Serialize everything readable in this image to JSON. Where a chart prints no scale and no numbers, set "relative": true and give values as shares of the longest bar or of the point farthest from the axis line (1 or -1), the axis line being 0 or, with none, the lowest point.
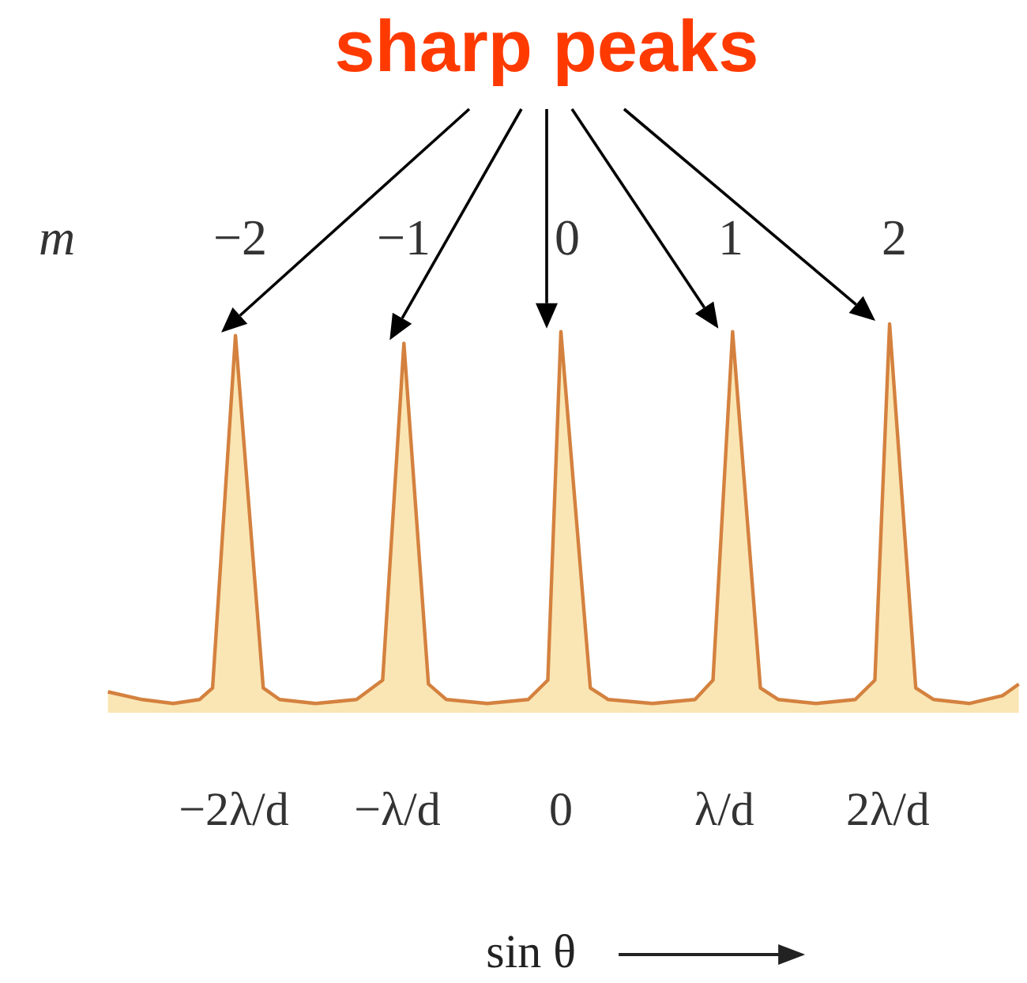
{
  "chart_data": {
    "type": "area",
    "relative": true,
    "annotations": [
      "sharp peaks"
    ],
    "xlabel": "sin θ",
    "x2label": "m",
    "xlim": [
      -2.77,
      2.8
    ],
    "xticks": [
      {
        "value": -2,
        "label": "−2λ/d"
      },
      {
        "value": -1,
        "label": "−λ/d"
      },
      0,
      {
        "value": 1,
        "label": "λ/d"
      },
      {
        "value": 2,
        "label": "2λ/d"
      }
    ],
    "x2lim": [
      -2.77,
      2.8
    ],
    "x2ticks": [
      {
        "value": -2,
        "label": "−2"
      },
      {
        "value": -1,
        "label": "−1"
      },
      0,
      1,
      2
    ],
    "x": [
      -2.77,
      -2.56,
      -2.37,
      -2.21,
      -2.13,
      -1.99,
      -1.82,
      -1.72,
      -1.5,
      -1.25,
      -1.09,
      -0.96,
      -0.81,
      -0.7,
      -0.45,
      -0.2,
      -0.08,
      0,
      0.18,
      0.29,
      0.56,
      0.82,
      0.93,
      1.05,
      1.22,
      1.33,
      1.56,
      1.8,
      1.92,
      2.01,
      2.17,
      2.28,
      2.5,
      2.7,
      2.8
    ],
    "series": [
      {
        "color": "#d4813f",
        "values": [
          0.05,
          0.03,
          0.02,
          0.03,
          0.06,
          0.97,
          0.06,
          0.03,
          0.02,
          0.03,
          0.08,
          0.95,
          0.07,
          0.03,
          0.02,
          0.03,
          0.08,
          0.98,
          0.06,
          0.03,
          0.02,
          0.03,
          0.08,
          0.98,
          0.06,
          0.03,
          0.02,
          0.03,
          0.08,
          1,
          0.06,
          0.03,
          0.02,
          0.04,
          0.07
        ]
      }
    ]
  }
}
